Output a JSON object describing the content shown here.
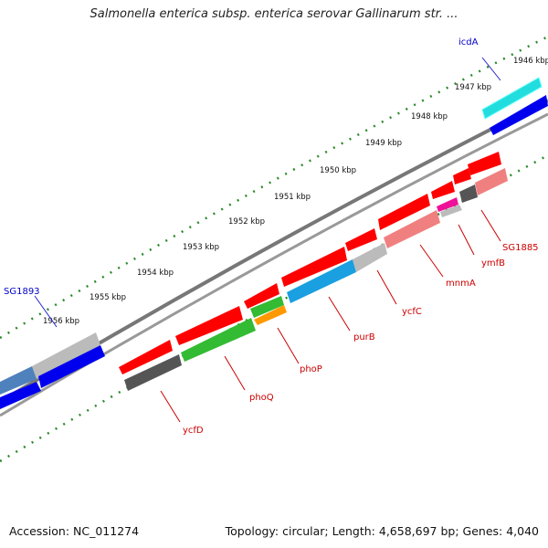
{
  "title": "Salmonella enterica subsp. enterica serovar Gallinarum str. ...",
  "accession": "Accession: NC_011274",
  "topology": "Topology: circular; Length: 4,658,697 bp; Genes: 4,040",
  "colors": {
    "forward_strand": "#ff0000",
    "reverse_strand": "#0000ff",
    "label_forward": "#cc0000",
    "label_reverse": "#0000cc",
    "backbone": "#888888",
    "tick": "#006600"
  },
  "kbp_labels": [
    "1946 kbp",
    "1947 kbp",
    "1948 kbp",
    "1949 kbp",
    "1950 kbp",
    "1951 kbp",
    "1952 kbp",
    "1953 kbp",
    "1954 kbp",
    "1955 kbp",
    "1956 kbp"
  ],
  "genes": [
    {
      "name": "icdA",
      "color": "#0000cc"
    },
    {
      "name": "SG1893",
      "color": "#0000cc"
    },
    {
      "name": "SG1885",
      "color": "#cc0000"
    },
    {
      "name": "ymfB",
      "color": "#cc0000"
    },
    {
      "name": "mnmA",
      "color": "#cc0000"
    },
    {
      "name": "ycfC",
      "color": "#cc0000"
    },
    {
      "name": "purB",
      "color": "#cc0000"
    },
    {
      "name": "phoP",
      "color": "#cc0000"
    },
    {
      "name": "phoQ",
      "color": "#cc0000"
    },
    {
      "name": "ycfD",
      "color": "#cc0000"
    }
  ]
}
